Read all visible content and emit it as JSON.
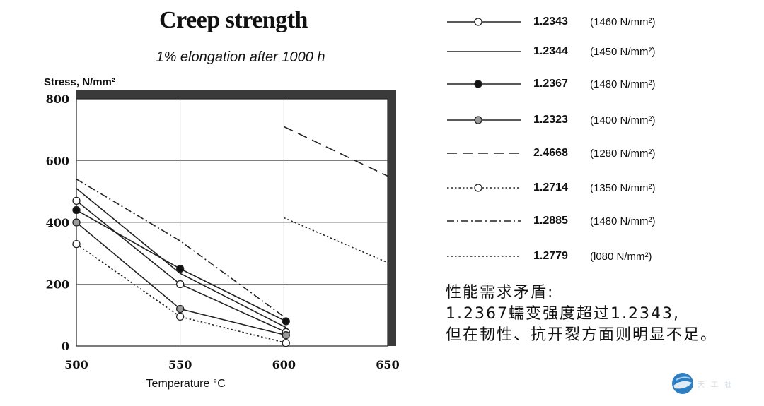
{
  "title": "Creep strength",
  "subtitle": "1% elongation after 1000 h",
  "note_lines": [
    "性能需求矛盾:",
    "1.2367蠕变强度超过1.2343,",
    "但在韧性、抗开裂方面则明显不足。"
  ],
  "watermark": "天 工 社",
  "chart_data": {
    "type": "line",
    "ylabel": "Stress, N/mm²",
    "xlabel": "Temperature °C",
    "xlim": [
      500,
      650
    ],
    "ylim": [
      0,
      800
    ],
    "x_ticks": [
      "500",
      "550",
      "600",
      "650"
    ],
    "y_ticks": [
      "0",
      "200",
      "400",
      "600",
      "800"
    ],
    "grid": true,
    "legend_position": "right",
    "series": [
      {
        "name": "1.2343",
        "strength": "(1460 N/mm²)",
        "style": "solid",
        "marker": "open",
        "x": [
          500,
          550,
          601
        ],
        "y": [
          470,
          200,
          45
        ]
      },
      {
        "name": "1.2344",
        "strength": "(1450 N/mm²)",
        "style": "solid",
        "marker": "none",
        "x": [
          500,
          550,
          601
        ],
        "y": [
          510,
          235,
          60
        ]
      },
      {
        "name": "1.2367",
        "strength": "(1480 N/mm²)",
        "style": "solid",
        "marker": "filled",
        "x": [
          500,
          550,
          601
        ],
        "y": [
          440,
          250,
          80
        ]
      },
      {
        "name": "1.2323",
        "strength": "(1400 N/mm²)",
        "style": "solid",
        "marker": "gray",
        "x": [
          500,
          550,
          601
        ],
        "y": [
          400,
          120,
          35
        ]
      },
      {
        "name": "2.4668",
        "strength": "(1280 N/mm²)",
        "style": "dashed",
        "marker": "none",
        "x": [
          600,
          650
        ],
        "y": [
          710,
          550
        ]
      },
      {
        "name": "1.2714",
        "strength": "(1350 N/mm²)",
        "style": "dotted",
        "marker": "open",
        "x": [
          500,
          550,
          601
        ],
        "y": [
          330,
          95,
          10
        ]
      },
      {
        "name": "1.2885",
        "strength": "(1480 N/mm²)",
        "style": "dashdot",
        "marker": "none",
        "x": [
          500,
          550,
          600
        ],
        "y": [
          540,
          340,
          95
        ]
      },
      {
        "name": "1.2779",
        "strength": "(l080 N/mm²)",
        "style": "dotted",
        "marker": "none",
        "x": [
          600,
          650
        ],
        "y": [
          415,
          270
        ]
      }
    ]
  }
}
